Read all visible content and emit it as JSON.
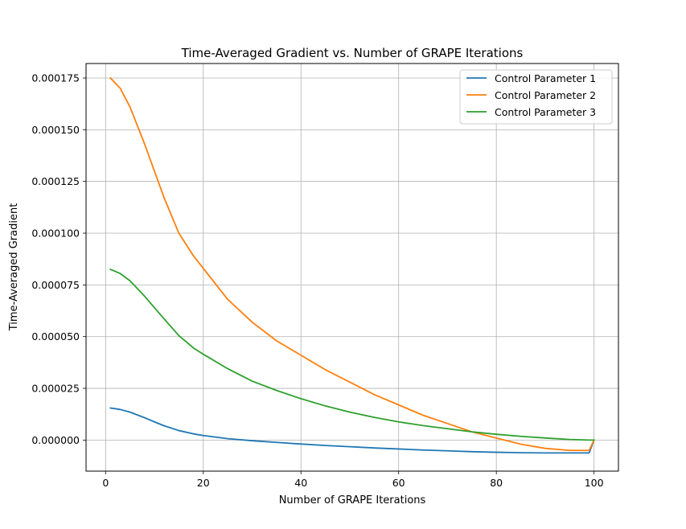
{
  "chart_data": {
    "type": "line",
    "title": "Time-Averaged Gradient vs. Number of GRAPE Iterations",
    "xlabel": "Number of GRAPE Iterations",
    "ylabel": "Time-Averaged Gradient",
    "xlim": [
      -4.0,
      105.0
    ],
    "ylim": [
      -1.5e-05,
      0.000182
    ],
    "xticks": [
      0,
      20,
      40,
      60,
      80,
      100
    ],
    "xtick_labels": [
      "0",
      "20",
      "40",
      "60",
      "80",
      "100"
    ],
    "yticks": [
      0,
      2.5e-05,
      5e-05,
      7.5e-05,
      0.0001,
      0.000125,
      0.00015,
      0.000175
    ],
    "ytick_labels": [
      "0.000000",
      "0.000025",
      "0.000050",
      "0.000075",
      "0.000100",
      "0.000125",
      "0.000150",
      "0.000175"
    ],
    "grid": true,
    "legend_position": "top-right",
    "x": [
      1,
      3,
      5,
      8,
      10,
      12,
      15,
      18,
      20,
      25,
      30,
      35,
      40,
      45,
      50,
      55,
      60,
      65,
      70,
      75,
      80,
      85,
      90,
      95,
      99,
      100
    ],
    "series": [
      {
        "name": "Control Parameter 1",
        "color": "#1f77b4",
        "values": [
          1.55e-05,
          1.48e-05,
          1.35e-05,
          1.08e-05,
          8.8e-06,
          6.9e-06,
          4.6e-06,
          3e-06,
          2.2e-06,
          7e-07,
          -3e-07,
          -1.1e-06,
          -1.9e-06,
          -2.6e-06,
          -3.2e-06,
          -3.8e-06,
          -4.3e-06,
          -4.8e-06,
          -5.2e-06,
          -5.6e-06,
          -5.9e-06,
          -6.1e-06,
          -6.2e-06,
          -6.2e-06,
          -6.2e-06,
          0.0
        ]
      },
      {
        "name": "Control Parameter 2",
        "color": "#ff7f0e",
        "values": [
          0.000175,
          0.00017,
          0.000161,
          0.000143,
          0.00013,
          0.000117,
          0.0001,
          8.9e-05,
          8.3e-05,
          6.8e-05,
          5.7e-05,
          4.8e-05,
          4.1e-05,
          3.4e-05,
          2.8e-05,
          2.2e-05,
          1.7e-05,
          1.2e-05,
          8e-06,
          4e-06,
          1e-06,
          -2e-06,
          -4e-06,
          -5e-06,
          -5e-06,
          0.0
        ]
      },
      {
        "name": "Control Parameter 3",
        "color": "#2ca02c",
        "values": [
          8.25e-05,
          8.05e-05,
          7.7e-05,
          6.95e-05,
          6.4e-05,
          5.85e-05,
          5.05e-05,
          4.45e-05,
          4.15e-05,
          3.45e-05,
          2.85e-05,
          2.4e-05,
          2e-05,
          1.65e-05,
          1.35e-05,
          1.1e-05,
          8.8e-06,
          7e-06,
          5.5e-06,
          4e-06,
          2.8e-06,
          1.8e-06,
          1e-06,
          3e-07,
          0.0,
          0.0
        ]
      }
    ]
  }
}
